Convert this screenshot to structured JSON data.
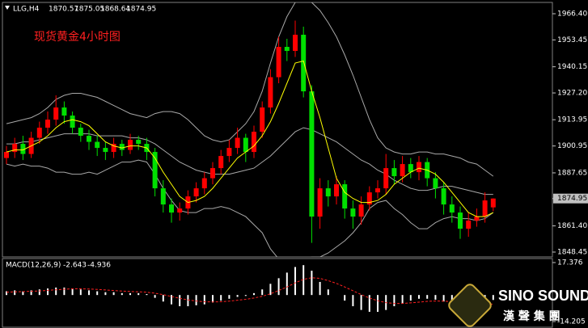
{
  "chart_data": [
    {
      "type": "candlestick",
      "symbol": "LLG,H4",
      "title": "现货黄金4小时图",
      "up_color": "#ff0000",
      "down_color": "#00e000",
      "band_color": "#a8a8a8",
      "ma_color": "#ffff00",
      "ylim": [
        1846.05,
        1972.0
      ],
      "yticks": [
        {
          "value": 1966.4,
          "label": "1966.40"
        },
        {
          "value": 1953.45,
          "label": "1953.45"
        },
        {
          "value": 1940.15,
          "label": "1940.15"
        },
        {
          "value": 1927.2,
          "label": "1927.20"
        },
        {
          "value": 1913.95,
          "label": "1913.95"
        },
        {
          "value": 1900.95,
          "label": "1900.95"
        },
        {
          "value": 1887.65,
          "label": "1887.65"
        },
        {
          "value": 1874.95,
          "label": "1874.95"
        },
        {
          "value": 1861.4,
          "label": "1861.40"
        },
        {
          "value": 1848.45,
          "label": "1848.45"
        }
      ],
      "open": [
        1895,
        1898,
        1902,
        1897,
        1905,
        1910,
        1914,
        1920,
        1916,
        1910,
        1906,
        1903,
        1900,
        1898,
        1902,
        1899,
        1904,
        1902,
        1898,
        1880,
        1872,
        1868,
        1870,
        1876,
        1880,
        1885,
        1890,
        1896,
        1900,
        1905,
        1898,
        1908,
        1920,
        1935,
        1950,
        1948,
        1956,
        1928,
        1866,
        1880,
        1876,
        1882,
        1870,
        1866,
        1872,
        1878,
        1880,
        1890,
        1886,
        1892,
        1888,
        1893,
        1885,
        1880,
        1872,
        1868,
        1860,
        1864,
        1866,
        1870.57
      ],
      "high": [
        1901,
        1905,
        1906,
        1908,
        1913,
        1918,
        1926,
        1923,
        1918,
        1912,
        1909,
        1906,
        1903,
        1905,
        1904,
        1907,
        1906,
        1905,
        1900,
        1884,
        1875,
        1873,
        1879,
        1883,
        1888,
        1893,
        1899,
        1904,
        1910,
        1907,
        1911,
        1923,
        1939,
        1955,
        1954,
        1963,
        1960,
        1931,
        1885,
        1884,
        1886,
        1884,
        1874,
        1876,
        1881,
        1884,
        1897,
        1894,
        1896,
        1895,
        1896,
        1895,
        1888,
        1883,
        1876,
        1871,
        1868,
        1870,
        1878,
        1875.05
      ],
      "low": [
        1892,
        1895,
        1894,
        1895,
        1902,
        1907,
        1911,
        1912,
        1907,
        1903,
        1899,
        1896,
        1894,
        1895,
        1896,
        1897,
        1899,
        1894,
        1876,
        1868,
        1863,
        1864,
        1867,
        1873,
        1877,
        1882,
        1887,
        1893,
        1897,
        1893,
        1895,
        1905,
        1917,
        1932,
        1943,
        1945,
        1925,
        1853,
        1860,
        1871,
        1872,
        1865,
        1860,
        1862,
        1869,
        1875,
        1877,
        1882,
        1883,
        1885,
        1884,
        1881,
        1875,
        1867,
        1863,
        1855,
        1856,
        1861,
        1863,
        1868.64
      ],
      "close": [
        1898,
        1902,
        1897,
        1905,
        1910,
        1914,
        1920,
        1916,
        1910,
        1906,
        1903,
        1900,
        1898,
        1902,
        1899,
        1904,
        1902,
        1898,
        1880,
        1872,
        1868,
        1870,
        1876,
        1880,
        1885,
        1890,
        1896,
        1900,
        1905,
        1898,
        1908,
        1920,
        1935,
        1950,
        1948,
        1956,
        1928,
        1866,
        1880,
        1876,
        1882,
        1870,
        1866,
        1872,
        1878,
        1880,
        1890,
        1886,
        1892,
        1888,
        1893,
        1885,
        1880,
        1872,
        1868,
        1860,
        1864,
        1866,
        1874,
        1874.95
      ],
      "bands": {
        "upper": [
          1912,
          1913,
          1914,
          1915,
          1917,
          1920,
          1924,
          1926,
          1927,
          1927,
          1926,
          1925,
          1923,
          1921,
          1919,
          1917,
          1916,
          1915,
          1917,
          1918,
          1918,
          1917,
          1914,
          1910,
          1906,
          1904,
          1903,
          1904,
          1908,
          1912,
          1918,
          1928,
          1942,
          1955,
          1965,
          1972,
          1975,
          1972,
          1968,
          1962,
          1955,
          1946,
          1936,
          1925,
          1914,
          1905,
          1900,
          1898,
          1897,
          1897,
          1898,
          1898,
          1897,
          1897,
          1896,
          1895,
          1893,
          1892,
          1889,
          1886
        ],
        "middle": [
          1902,
          1902,
          1903,
          1903,
          1904,
          1905,
          1906,
          1907,
          1907,
          1907,
          1907,
          1906,
          1906,
          1906,
          1906,
          1905,
          1905,
          1904,
          1902,
          1899,
          1896,
          1893,
          1891,
          1889,
          1888,
          1887,
          1887,
          1887,
          1888,
          1889,
          1890,
          1893,
          1896,
          1900,
          1904,
          1908,
          1910,
          1909,
          1907,
          1905,
          1903,
          1900,
          1897,
          1894,
          1892,
          1889,
          1887,
          1884,
          1882,
          1880,
          1879,
          1879,
          1880,
          1881,
          1881,
          1880,
          1879,
          1878,
          1877,
          1877
        ],
        "lower": [
          1892,
          1891,
          1892,
          1891,
          1891,
          1890,
          1888,
          1888,
          1887,
          1887,
          1888,
          1887,
          1889,
          1891,
          1893,
          1893,
          1894,
          1893,
          1887,
          1880,
          1874,
          1869,
          1868,
          1868,
          1870,
          1870,
          1871,
          1870,
          1868,
          1866,
          1862,
          1858,
          1850,
          1845,
          1843,
          1844,
          1845,
          1846,
          1846,
          1848,
          1851,
          1854,
          1858,
          1863,
          1870,
          1873,
          1874,
          1870,
          1867,
          1863,
          1860,
          1860,
          1863,
          1865,
          1866,
          1865,
          1865,
          1864,
          1865,
          1868
        ]
      },
      "ma": [
        1898,
        1899,
        1899,
        1901,
        1903,
        1906,
        1910,
        1913,
        1914,
        1913,
        1911,
        1907,
        1903,
        1901,
        1900,
        1901,
        1901,
        1900,
        1895,
        1888,
        1882,
        1876,
        1873,
        1874,
        1876,
        1880,
        1885,
        1890,
        1895,
        1898,
        1901,
        1906,
        1913,
        1922,
        1932,
        1942,
        1943,
        1928,
        1915,
        1900,
        1885,
        1878,
        1875,
        1873,
        1873,
        1874,
        1877,
        1882,
        1885,
        1888,
        1890,
        1889,
        1887,
        1883,
        1878,
        1873,
        1868,
        1866,
        1866,
        1868
      ]
    },
    {
      "type": "macd",
      "label": "MACD(12,26,9)",
      "hist_color": "#ffffff",
      "signal_color": "#ff2020",
      "ylim": [
        -17.23,
        19.54
      ],
      "yticks": [
        17.376,
        -14.205
      ],
      "histogram": [
        2,
        2.5,
        2,
        2.5,
        3,
        3.5,
        4,
        4,
        3.5,
        3,
        2.5,
        2,
        1.5,
        1.5,
        1,
        1,
        1,
        0.5,
        -1.5,
        -3.5,
        -5,
        -6,
        -6,
        -5.5,
        -5,
        -4,
        -3,
        -2,
        -1,
        -0.5,
        1,
        3,
        6,
        9,
        12,
        15,
        16,
        13,
        7,
        3,
        0,
        -3,
        -6,
        -8,
        -9,
        -9,
        -8,
        -6,
        -4.5,
        -3,
        -2,
        -2,
        -2.5,
        -3.5,
        -4.5,
        -5.5,
        -6,
        -5.5,
        -5,
        -2.643
      ],
      "signal": [
        1.5,
        1.7,
        1.8,
        2,
        2.2,
        2.5,
        2.8,
        3.1,
        3.3,
        3.3,
        3.2,
        3,
        2.7,
        2.4,
        2.1,
        1.9,
        1.7,
        1.5,
        1,
        0.2,
        -0.8,
        -1.8,
        -2.6,
        -3.2,
        -3.6,
        -3.7,
        -3.6,
        -3.3,
        -2.8,
        -2.3,
        -1.6,
        -0.7,
        0.7,
        2.4,
        4.3,
        6.5,
        8.4,
        9.3,
        8.9,
        7.7,
        6.2,
        4.3,
        2.3,
        0.2,
        -1.6,
        -3.1,
        -4.1,
        -4.5,
        -4.5,
        -4.2,
        -3.8,
        -3.4,
        -3.2,
        -3.3,
        -3.5,
        -3.9,
        -4.3,
        -4.6,
        -4.7,
        -4.936
      ]
    }
  ],
  "logo": {
    "name": "SINO SOUND",
    "subtitle": "漢 聲 集 團"
  }
}
